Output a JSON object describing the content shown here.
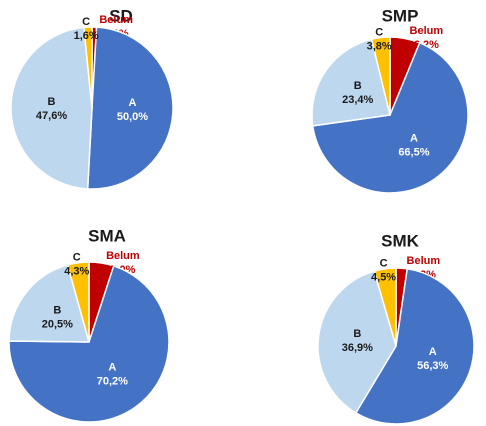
{
  "chart_data": [
    {
      "type": "pie",
      "title": "SD",
      "categories": [
        "Belum",
        "A",
        "B",
        "C"
      ],
      "values": [
        0.9,
        50.0,
        47.6,
        1.6
      ],
      "value_labels": [
        "0,9%",
        "50,0%",
        "47,6%",
        "1,6%"
      ],
      "colors": [
        "#c00000",
        "#4472c4",
        "#bdd7ee",
        "#ffc000"
      ]
    },
    {
      "type": "pie",
      "title": "SMP",
      "categories": [
        "Belum",
        "A",
        "B",
        "C"
      ],
      "values": [
        6.2,
        66.5,
        23.4,
        3.8
      ],
      "value_labels": [
        "6,2%",
        "66,5%",
        "23,4%",
        "3,8%"
      ],
      "colors": [
        "#c00000",
        "#4472c4",
        "#bdd7ee",
        "#ffc000"
      ]
    },
    {
      "type": "pie",
      "title": "SMA",
      "categories": [
        "Belum",
        "A",
        "B",
        "C"
      ],
      "values": [
        5.0,
        70.2,
        20.5,
        4.3
      ],
      "value_labels": [
        "5,0%",
        "70,2%",
        "20,5%",
        "4,3%"
      ],
      "colors": [
        "#c00000",
        "#4472c4",
        "#bdd7ee",
        "#ffc000"
      ]
    },
    {
      "type": "pie",
      "title": "SMK",
      "categories": [
        "Belum",
        "A",
        "B",
        "C"
      ],
      "values": [
        2.3,
        56.3,
        36.9,
        4.5
      ],
      "value_labels": [
        "2,3%",
        "56,3%",
        "36,9%",
        "4,5%"
      ],
      "colors": [
        "#c00000",
        "#4472c4",
        "#bdd7ee",
        "#ffc000"
      ]
    }
  ]
}
